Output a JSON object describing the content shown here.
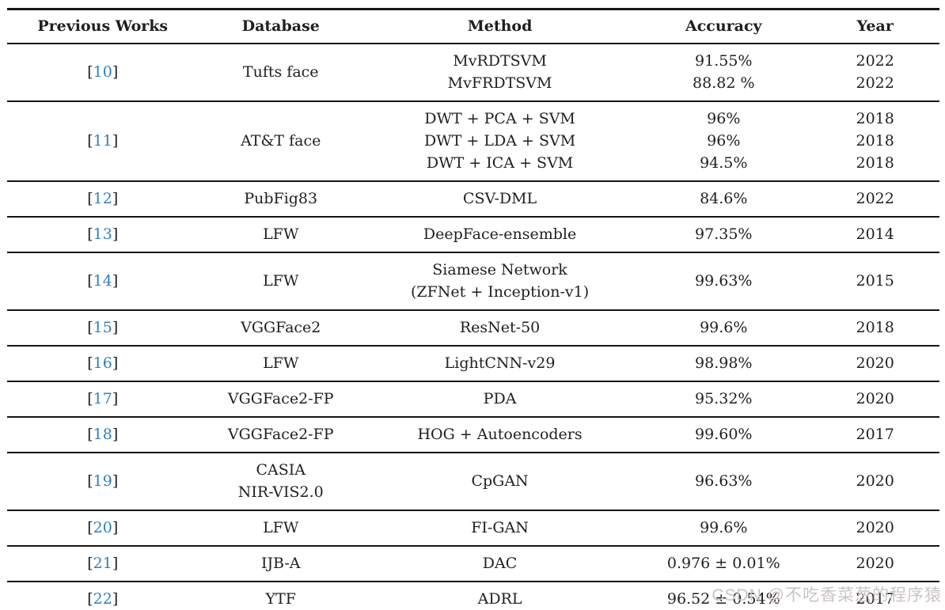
{
  "table": {
    "columns": [
      "Previous Works",
      "Database",
      "Method",
      "Accuracy",
      "Year"
    ],
    "citation_brackets": [
      "[",
      "]"
    ],
    "rows": [
      {
        "ref": "10",
        "database": [
          "Tufts face"
        ],
        "methods": [
          "MvRDTSVM",
          "MvFRDTSVM"
        ],
        "accuracies": [
          "91.55%",
          "88.82 %"
        ],
        "years": [
          "2022",
          "2022"
        ]
      },
      {
        "ref": "11",
        "database": [
          "AT&T face"
        ],
        "methods": [
          "DWT + PCA + SVM",
          "DWT + LDA + SVM",
          "DWT + ICA + SVM"
        ],
        "accuracies": [
          "96%",
          "96%",
          "94.5%"
        ],
        "years": [
          "2018",
          "2018",
          "2018"
        ]
      },
      {
        "ref": "12",
        "database": [
          "PubFig83"
        ],
        "methods": [
          "CSV-DML"
        ],
        "accuracies": [
          "84.6%"
        ],
        "years": [
          "2022"
        ]
      },
      {
        "ref": "13",
        "database": [
          "LFW"
        ],
        "methods": [
          "DeepFace-ensemble"
        ],
        "accuracies": [
          "97.35%"
        ],
        "years": [
          "2014"
        ]
      },
      {
        "ref": "14",
        "database": [
          "LFW"
        ],
        "methods": [
          "Siamese Network",
          "(ZFNet + Inception-v1)"
        ],
        "accuracies": [
          "99.63%"
        ],
        "years": [
          "2015"
        ]
      },
      {
        "ref": "15",
        "database": [
          "VGGFace2"
        ],
        "methods": [
          "ResNet-50"
        ],
        "accuracies": [
          "99.6%"
        ],
        "years": [
          "2018"
        ]
      },
      {
        "ref": "16",
        "database": [
          "LFW"
        ],
        "methods": [
          "LightCNN-v29"
        ],
        "accuracies": [
          "98.98%"
        ],
        "years": [
          "2020"
        ]
      },
      {
        "ref": "17",
        "database": [
          "VGGFace2-FP"
        ],
        "methods": [
          "PDA"
        ],
        "accuracies": [
          "95.32%"
        ],
        "years": [
          "2020"
        ]
      },
      {
        "ref": "18",
        "database": [
          "VGGFace2-FP"
        ],
        "methods": [
          "HOG + Autoencoders"
        ],
        "accuracies": [
          "99.60%"
        ],
        "years": [
          "2017"
        ]
      },
      {
        "ref": "19",
        "database": [
          "CASIA",
          "NIR-VIS2.0"
        ],
        "methods": [
          "CpGAN"
        ],
        "accuracies": [
          "96.63%"
        ],
        "years": [
          "2020"
        ]
      },
      {
        "ref": "20",
        "database": [
          "LFW"
        ],
        "methods": [
          "FI-GAN"
        ],
        "accuracies": [
          "99.6%"
        ],
        "years": [
          "2020"
        ]
      },
      {
        "ref": "21",
        "database": [
          "IJB-A"
        ],
        "methods": [
          "DAC"
        ],
        "accuracies": [
          "0.976 ± 0.01%"
        ],
        "years": [
          "2020"
        ]
      },
      {
        "ref": "22",
        "database": [
          "YTF"
        ],
        "methods": [
          "ADRL"
        ],
        "accuracies": [
          "96.52 ± 0.54%"
        ],
        "years": [
          "2017"
        ]
      }
    ]
  },
  "watermark": {
    "text": "CSDN @不吃香菜葱的程序猿"
  },
  "colors": {
    "citation_blue": "#2e80c0",
    "rule_black": "#151515",
    "watermark_gray": "#ccc4c4"
  }
}
